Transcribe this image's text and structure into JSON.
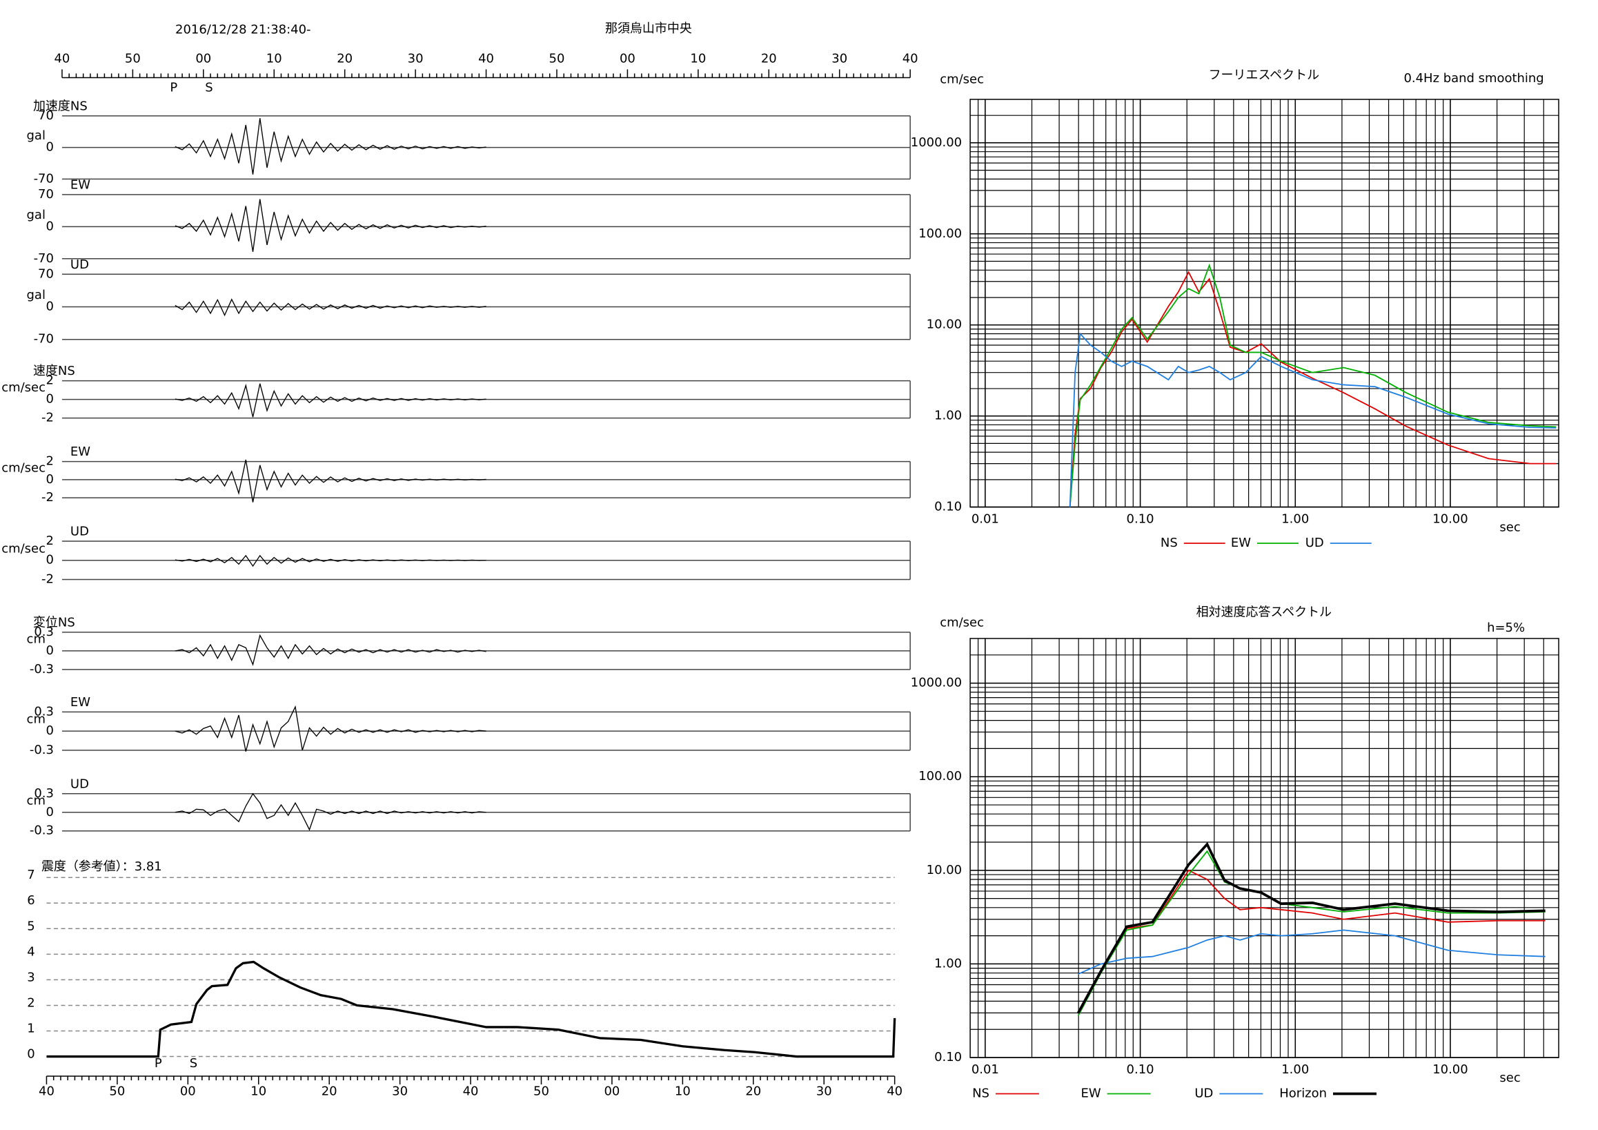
{
  "chart_data": [
    {
      "type": "waveform",
      "title": "那須烏山市中央",
      "subtitle": "2016/12/28 21:38:40-",
      "xlim": [
        0,
        120
      ],
      "xticks": [
        {
          "value": 0,
          "label": "40"
        },
        {
          "value": 10,
          "label": "50"
        },
        {
          "value": 20,
          "label": "00"
        },
        {
          "value": 30,
          "label": "10"
        },
        {
          "value": 40,
          "label": "20"
        },
        {
          "value": 50,
          "label": "30"
        },
        {
          "value": 60,
          "label": "40"
        },
        {
          "value": 70,
          "label": "50"
        },
        {
          "value": 80,
          "label": "00"
        },
        {
          "value": 90,
          "label": "10"
        },
        {
          "value": 100,
          "label": "20"
        },
        {
          "value": 110,
          "label": "30"
        },
        {
          "value": 120,
          "label": "40"
        }
      ],
      "phases": [
        {
          "label": "P",
          "value": 15.8
        },
        {
          "label": "S",
          "value": 20.8
        }
      ],
      "color": "#000000",
      "x": [
        16,
        17,
        18,
        19,
        20,
        21,
        22,
        23,
        24,
        25,
        26,
        27,
        28,
        29,
        30,
        31,
        32,
        33,
        34,
        35,
        36,
        37,
        38,
        39,
        40,
        41,
        42,
        43,
        44,
        45,
        46,
        47,
        48,
        49,
        50,
        51,
        52,
        53,
        54,
        55,
        56,
        57,
        58,
        59,
        60
      ],
      "panels": [
        {
          "name": "加速度NS",
          "unit": "gal",
          "ylim": [
            -70,
            70
          ],
          "yticks": [
            -70,
            0,
            70
          ],
          "values": [
            2,
            -5,
            8,
            -12,
            15,
            -20,
            18,
            -25,
            30,
            -35,
            50,
            -60,
            65,
            -45,
            35,
            -30,
            25,
            -20,
            18,
            -15,
            12,
            -10,
            9,
            -8,
            7,
            -6,
            6,
            -5,
            5,
            -4,
            4,
            -4,
            3,
            -3,
            3,
            -3,
            2,
            -2,
            2,
            -2,
            2,
            -2,
            1,
            -1,
            1
          ]
        },
        {
          "name": "EW",
          "unit": "gal",
          "ylim": [
            -70,
            70
          ],
          "yticks": [
            -70,
            0,
            70
          ],
          "values": [
            2,
            -4,
            7,
            -10,
            14,
            -18,
            20,
            -22,
            28,
            -32,
            45,
            -55,
            60,
            -40,
            32,
            -28,
            24,
            -20,
            16,
            -14,
            12,
            -10,
            9,
            -8,
            7,
            -6,
            5,
            -5,
            4,
            -4,
            4,
            -3,
            3,
            -3,
            3,
            -2,
            2,
            -2,
            2,
            -2,
            1,
            -1,
            1,
            -1,
            1
          ]
        },
        {
          "name": "UD",
          "unit": "gal",
          "ylim": [
            -70,
            70
          ],
          "yticks": [
            -70,
            0,
            70
          ],
          "values": [
            3,
            -6,
            10,
            -12,
            12,
            -14,
            15,
            -18,
            16,
            -14,
            12,
            -10,
            10,
            -9,
            8,
            -7,
            7,
            -6,
            6,
            -5,
            5,
            -5,
            4,
            -4,
            4,
            -3,
            3,
            -3,
            3,
            -3,
            2,
            -2,
            2,
            -2,
            2,
            -2,
            2,
            -1,
            1,
            -1,
            1,
            -1,
            1,
            -1,
            1
          ]
        },
        {
          "name": "速度NS",
          "unit": "cm/sec",
          "ylim": [
            -2,
            2
          ],
          "yticks": [
            -2,
            0,
            2
          ],
          "values": [
            0.05,
            -0.1,
            0.15,
            -0.2,
            0.3,
            -0.35,
            0.4,
            -0.5,
            0.7,
            -1.0,
            1.5,
            -1.9,
            1.7,
            -1.2,
            0.9,
            -0.7,
            0.6,
            -0.5,
            0.4,
            -0.35,
            0.3,
            -0.3,
            0.25,
            -0.2,
            0.2,
            -0.2,
            0.15,
            -0.15,
            0.15,
            -0.1,
            0.1,
            -0.1,
            0.1,
            -0.1,
            0.08,
            -0.08,
            0.08,
            -0.06,
            0.06,
            -0.05,
            0.05,
            -0.05,
            0.05,
            -0.04,
            0.04
          ]
        },
        {
          "name": "EW",
          "unit": "cm/sec",
          "ylim": [
            -2,
            2
          ],
          "yticks": [
            -2,
            0,
            2
          ],
          "values": [
            0.05,
            -0.1,
            0.2,
            -0.25,
            0.3,
            -0.4,
            0.5,
            -0.7,
            0.9,
            -1.5,
            2.2,
            -2.5,
            1.6,
            -1.1,
            0.9,
            -0.8,
            0.7,
            -0.6,
            0.5,
            -0.4,
            0.35,
            -0.3,
            0.3,
            -0.25,
            0.2,
            -0.2,
            0.15,
            -0.15,
            0.12,
            -0.1,
            0.1,
            -0.1,
            0.08,
            -0.08,
            0.06,
            -0.06,
            0.05,
            -0.05,
            0.05,
            -0.04,
            0.04,
            -0.04,
            0.03,
            -0.03,
            0.03
          ]
        },
        {
          "name": "UD",
          "unit": "cm/sec",
          "ylim": [
            -2,
            2
          ],
          "yticks": [
            -2,
            0,
            2
          ],
          "values": [
            0.05,
            -0.08,
            0.1,
            -0.12,
            0.12,
            -0.15,
            0.2,
            -0.25,
            0.3,
            -0.4,
            0.5,
            -0.6,
            0.5,
            -0.4,
            0.3,
            -0.3,
            0.25,
            -0.2,
            0.2,
            -0.15,
            0.15,
            -0.1,
            0.1,
            -0.1,
            0.08,
            -0.08,
            0.06,
            -0.06,
            0.05,
            -0.05,
            0.04,
            -0.04,
            0.04,
            -0.03,
            0.03,
            -0.03,
            0.03,
            -0.02,
            0.02,
            -0.02,
            0.02,
            -0.02,
            0.02,
            -0.01,
            0.01
          ]
        },
        {
          "name": "変位NS",
          "unit": "cm",
          "ylim": [
            -0.3,
            0.3
          ],
          "yticks": [
            -0.3,
            0,
            0.3
          ],
          "values": [
            0,
            0.02,
            -0.03,
            0.05,
            -0.08,
            0.1,
            -0.12,
            0.08,
            -0.15,
            0.1,
            0.05,
            -0.22,
            0.25,
            0.05,
            -0.1,
            0.08,
            -0.12,
            0.1,
            -0.05,
            0.08,
            -0.06,
            0.04,
            -0.05,
            0.03,
            -0.03,
            0.03,
            -0.02,
            0.02,
            -0.03,
            0.02,
            -0.02,
            0.02,
            -0.02,
            0.02,
            -0.02,
            0.01,
            -0.02,
            0.02,
            -0.01,
            0.01,
            -0.02,
            0.01,
            -0.01,
            0.01,
            -0.01
          ]
        },
        {
          "name": "EW",
          "unit": "cm",
          "ylim": [
            -0.3,
            0.3
          ],
          "yticks": [
            -0.3,
            0,
            0.3
          ],
          "values": [
            0,
            -0.03,
            0.02,
            -0.05,
            0.04,
            0.08,
            -0.1,
            0.2,
            -0.1,
            0.25,
            -0.32,
            0.1,
            -0.2,
            0.15,
            -0.25,
            0.05,
            0.15,
            0.38,
            -0.3,
            0.05,
            -0.08,
            0.06,
            -0.05,
            0.04,
            -0.03,
            0.03,
            -0.02,
            0.02,
            -0.02,
            0.02,
            -0.02,
            0.02,
            -0.01,
            0.02,
            -0.02,
            0.01,
            -0.01,
            0.01,
            -0.01,
            0.01,
            -0.01,
            0.01,
            -0.01,
            0.01,
            0
          ]
        },
        {
          "name": "UD",
          "unit": "cm",
          "ylim": [
            -0.3,
            0.3
          ],
          "yticks": [
            -0.3,
            0,
            0.3
          ],
          "values": [
            0,
            0.02,
            -0.02,
            0.05,
            0.04,
            -0.05,
            0.02,
            0.05,
            -0.05,
            -0.15,
            0.1,
            0.3,
            0.15,
            -0.1,
            -0.05,
            0.12,
            -0.05,
            0.15,
            -0.05,
            -0.28,
            0.05,
            0.02,
            -0.03,
            0.02,
            -0.02,
            0.02,
            -0.02,
            0.02,
            -0.02,
            0.02,
            -0.02,
            0.02,
            -0.01,
            0.01,
            -0.01,
            0.01,
            -0.01,
            0.01,
            -0.01,
            0.01,
            -0.01,
            0.01,
            -0.01,
            0.01,
            0
          ]
        }
      ]
    },
    {
      "type": "intensity",
      "title": "震度（参考値）：3.81",
      "color": "#000000",
      "xlim": [
        0,
        120
      ],
      "xticks": [
        {
          "value": 0,
          "label": "40"
        },
        {
          "value": 10,
          "label": "50"
        },
        {
          "value": 20,
          "label": "00"
        },
        {
          "value": 30,
          "label": "10"
        },
        {
          "value": 40,
          "label": "20"
        },
        {
          "value": 50,
          "label": "30"
        },
        {
          "value": 60,
          "label": "40"
        },
        {
          "value": 70,
          "label": "50"
        },
        {
          "value": 80,
          "label": "00"
        },
        {
          "value": 90,
          "label": "10"
        },
        {
          "value": 100,
          "label": "20"
        },
        {
          "value": 110,
          "label": "30"
        },
        {
          "value": 120,
          "label": "40"
        }
      ],
      "phases": [
        {
          "label": "P",
          "value": 15.8
        },
        {
          "label": "S",
          "value": 20.8
        }
      ],
      "ylim": [
        0,
        7
      ],
      "yticks": [
        0,
        1,
        2,
        3,
        4,
        5,
        6,
        7
      ],
      "grid": "dashed",
      "x": [
        0,
        15.8,
        16.1,
        17.6,
        20.5,
        21.2,
        22.7,
        23.4,
        25.6,
        26.8,
        27.8,
        29.3,
        30.7,
        32.9,
        35.9,
        38.8,
        41.7,
        43.9,
        49.0,
        54.9,
        62.2,
        66.6,
        72.4,
        78.3,
        84.1,
        90.0,
        95.9,
        100.2,
        106.1,
        119.8,
        120
      ],
      "values": [
        0,
        0,
        1.05,
        1.25,
        1.35,
        2.05,
        2.6,
        2.75,
        2.8,
        3.45,
        3.65,
        3.7,
        3.45,
        3.1,
        2.7,
        2.4,
        2.25,
        2.0,
        1.85,
        1.55,
        1.15,
        1.15,
        1.05,
        0.72,
        0.65,
        0.4,
        0.25,
        0.17,
        0,
        0,
        1.5
      ]
    },
    {
      "type": "loglog",
      "title": "フーリエスペクトル",
      "subtitle": "0.4Hz band smoothing",
      "y_label": "cm/sec",
      "x_label": "sec",
      "xscale": "log",
      "yscale": "log",
      "grid": true,
      "xlim": [
        0.008,
        50
      ],
      "ylim": [
        0.1,
        3000
      ],
      "xticks": [
        {
          "value": 0.01,
          "label": "0.01"
        },
        {
          "value": 0.1,
          "label": "0.10"
        },
        {
          "value": 1,
          "label": "1.00"
        },
        {
          "value": 10,
          "label": "10.00"
        }
      ],
      "yticks": [
        {
          "value": 0.1,
          "label": "0.10"
        },
        {
          "value": 1,
          "label": "1.00"
        },
        {
          "value": 10,
          "label": "10.00"
        },
        {
          "value": 100,
          "label": "100.00"
        },
        {
          "value": 1000,
          "label": "1000.00"
        }
      ],
      "x": [
        0.0352,
        0.038,
        0.041,
        0.0478,
        0.0558,
        0.065,
        0.0759,
        0.0885,
        0.111,
        0.152,
        0.176,
        0.205,
        0.239,
        0.279,
        0.326,
        0.38,
        0.479,
        0.603,
        0.81,
        1.29,
        2.05,
        3.26,
        5.19,
        9.65,
        17.7,
        32.8,
        48.1
      ],
      "series": [
        {
          "name": "NS",
          "color": "#e00000",
          "values": [
            0.1,
            0.63,
            1.55,
            2.0,
            3.4,
            5,
            8.4,
            11.5,
            6.5,
            16,
            23,
            38,
            23,
            32,
            14,
            5.7,
            5,
            6.2,
            3.9,
            2.6,
            1.8,
            1.2,
            0.77,
            0.48,
            0.34,
            0.3,
            0.3
          ]
        },
        {
          "name": "EW",
          "color": "#00b000",
          "values": [
            0.1,
            0.5,
            1.5,
            2.2,
            3.5,
            5.5,
            9,
            12,
            7,
            14,
            20,
            25,
            22,
            45,
            20,
            6,
            5,
            5,
            4,
            3,
            3.4,
            2.8,
            1.8,
            1.1,
            0.85,
            0.78,
            0.76
          ]
        },
        {
          "name": "UD",
          "color": "#1e7fe0",
          "values": [
            0.1,
            3,
            8,
            6,
            5,
            4,
            3.5,
            4,
            3.5,
            2.5,
            3.5,
            3,
            3.2,
            3.5,
            3,
            2.5,
            3,
            4.5,
            3.5,
            2.5,
            2.2,
            2.1,
            1.6,
            1.05,
            0.82,
            0.75,
            0.74
          ]
        }
      ]
    },
    {
      "type": "loglog",
      "title": "相対速度応答スペクトル",
      "subtitle": "h=5%",
      "y_label": "cm/sec",
      "x_label": "sec",
      "xscale": "log",
      "yscale": "log",
      "grid": true,
      "xlim": [
        0.008,
        50
      ],
      "ylim": [
        0.1,
        3000
      ],
      "xticks": [
        {
          "value": 0.01,
          "label": "0.01"
        },
        {
          "value": 0.1,
          "label": "0.10"
        },
        {
          "value": 1,
          "label": "1.00"
        },
        {
          "value": 10,
          "label": "10.00"
        }
      ],
      "yticks": [
        {
          "value": 0.1,
          "label": "0.10"
        },
        {
          "value": 1,
          "label": "1.00"
        },
        {
          "value": 10,
          "label": "10.00"
        },
        {
          "value": 100,
          "label": "100.00"
        },
        {
          "value": 1000,
          "label": "1000.00"
        }
      ],
      "x": [
        0.0398,
        0.0558,
        0.0818,
        0.12,
        0.205,
        0.27,
        0.35,
        0.44,
        0.6,
        0.81,
        1.29,
        2.05,
        4.4,
        9.65,
        20.4,
        41
      ],
      "series": [
        {
          "name": "NS",
          "color": "#e00000",
          "values": [
            0.3,
            0.84,
            2.4,
            2.6,
            10,
            8,
            5,
            3.8,
            4,
            3.8,
            3.5,
            3.0,
            3.5,
            2.8,
            2.9,
            2.9
          ]
        },
        {
          "name": "EW",
          "color": "#00b000",
          "values": [
            0.28,
            0.8,
            2.3,
            2.6,
            9,
            16,
            7.5,
            6.4,
            5.8,
            4.4,
            4,
            3.6,
            4.1,
            3.5,
            3.5,
            3.6
          ]
        },
        {
          "name": "UD",
          "color": "#1e7fe0",
          "values": [
            0.78,
            1.0,
            1.15,
            1.2,
            1.5,
            1.8,
            2.0,
            1.8,
            2.1,
            2.0,
            2.1,
            2.3,
            2.0,
            1.4,
            1.25,
            1.2
          ]
        },
        {
          "name": "Horizon",
          "color": "#000000",
          "values": [
            0.3,
            0.84,
            2.5,
            2.8,
            11.5,
            19,
            7.8,
            6.4,
            5.8,
            4.4,
            4.5,
            3.8,
            4.4,
            3.7,
            3.6,
            3.7
          ]
        }
      ]
    }
  ]
}
